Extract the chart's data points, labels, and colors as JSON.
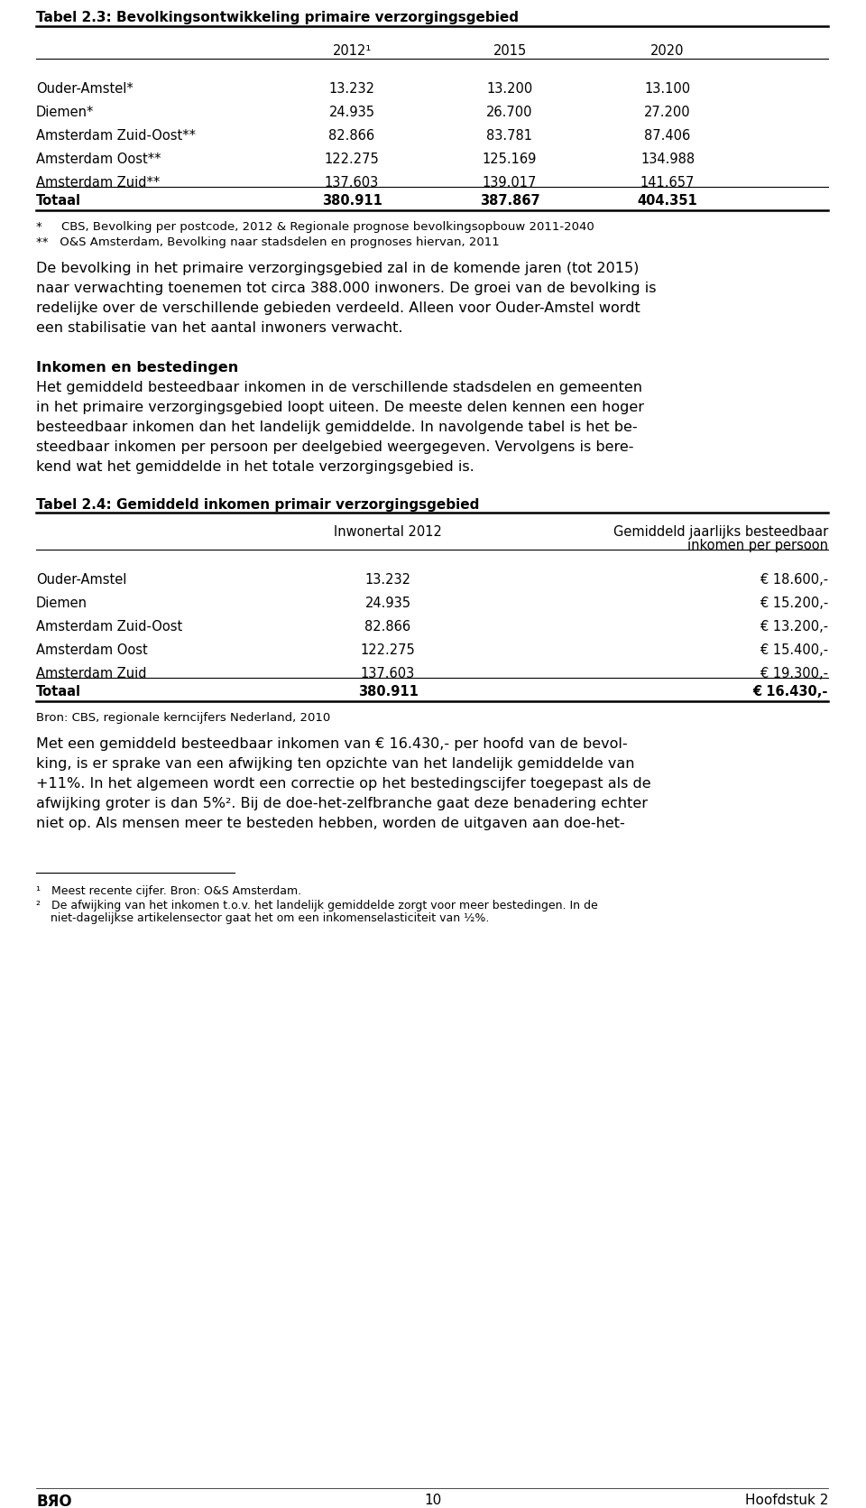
{
  "page_bg": "#ffffff",
  "table1_title": "Tabel 2.3: Bevolkingsontwikkeling primaire verzorgingsgebied",
  "table1_headers": [
    "",
    "2012¹",
    "2015",
    "2020"
  ],
  "table1_rows": [
    [
      "Ouder-Amstel*",
      "13.232",
      "13.200",
      "13.100"
    ],
    [
      "Diemen*",
      "24.935",
      "26.700",
      "27.200"
    ],
    [
      "Amsterdam Zuid-Oost**",
      "82.866",
      "83.781",
      "87.406"
    ],
    [
      "Amsterdam Oost**",
      "122.275",
      "125.169",
      "134.988"
    ],
    [
      "Amsterdam Zuid**",
      "137.603",
      "139.017",
      "141.657"
    ]
  ],
  "table1_total": [
    "Totaal",
    "380.911",
    "387.867",
    "404.351"
  ],
  "table1_footnote1": "*     CBS, Bevolking per postcode, 2012 & Regionale prognose bevolkingsopbouw 2011-2040",
  "table1_footnote2": "**   O&S Amsterdam, Bevolking naar stadsdelen en prognoses hiervan, 2011",
  "para1_lines": [
    "De bevolking in het primaire verzorgingsgebied zal in de komende jaren (tot 2015)",
    "naar verwachting toenemen tot circa 388.000 inwoners. De groei van de bevolking is",
    "redelijke over de verschillende gebieden verdeeld. Alleen voor Ouder-Amstel wordt",
    "een stabilisatie van het aantal inwoners verwacht."
  ],
  "heading2": "Inkomen en bestedingen",
  "para2_lines": [
    "Het gemiddeld besteedbaar inkomen in de verschillende stadsdelen en gemeenten",
    "in het primaire verzorgingsgebied loopt uiteen. De meeste delen kennen een hoger",
    "besteedbaar inkomen dan het landelijk gemiddelde. In navolgende tabel is het be-",
    "steedbaar inkomen per persoon per deelgebied weergegeven. Vervolgens is bere-",
    "kend wat het gemiddelde in het totale verzorgingsgebied is."
  ],
  "table2_title": "Tabel 2.4: Gemiddeld inkomen primair verzorgingsgebied",
  "table2_header_col2": "Inwonertal 2012",
  "table2_header_col3_line1": "Gemiddeld jaarlijks besteedbaar",
  "table2_header_col3_line2": "inkomen per persoon",
  "table2_rows": [
    [
      "Ouder-Amstel",
      "13.232",
      "€ 18.600,-"
    ],
    [
      "Diemen",
      "24.935",
      "€ 15.200,-"
    ],
    [
      "Amsterdam Zuid-Oost",
      "82.866",
      "€ 13.200,-"
    ],
    [
      "Amsterdam Oost",
      "122.275",
      "€ 15.400,-"
    ],
    [
      "Amsterdam Zuid",
      "137.603",
      "€ 19.300,-"
    ]
  ],
  "table2_total": [
    "Totaal",
    "380.911",
    "€ 16.430,-"
  ],
  "table2_source": "Bron: CBS, regionale kerncijfers Nederland, 2010",
  "para3_lines": [
    "Met een gemiddeld besteedbaar inkomen van € 16.430,- per hoofd van de bevol-",
    "king, is er sprake van een afwijking ten opzichte van het landelijk gemiddelde van",
    "+11%. In het algemeen wordt een correctie op het bestedingscijfer toegepast als de",
    "afwijking groter is dan 5%². Bij de doe-het-zelfbranche gaat deze benadering echter",
    "niet op. Als mensen meer te besteden hebben, worden de uitgaven aan doe-het-"
  ],
  "footnote1": "¹   Meest recente cijfer. Bron: O&S Amsterdam.",
  "footnote2_line1": "²   De afwijking van het inkomen t.o.v. het landelijk gemiddelde zorgt voor meer bestedingen. In de",
  "footnote2_line2": "    niet-dagelijkse artikelensector gaat het om een inkomenselasticiteit van ½%.",
  "footer_left": "BЯО",
  "footer_page": "10",
  "footer_right": "Hoofdstuk 2"
}
